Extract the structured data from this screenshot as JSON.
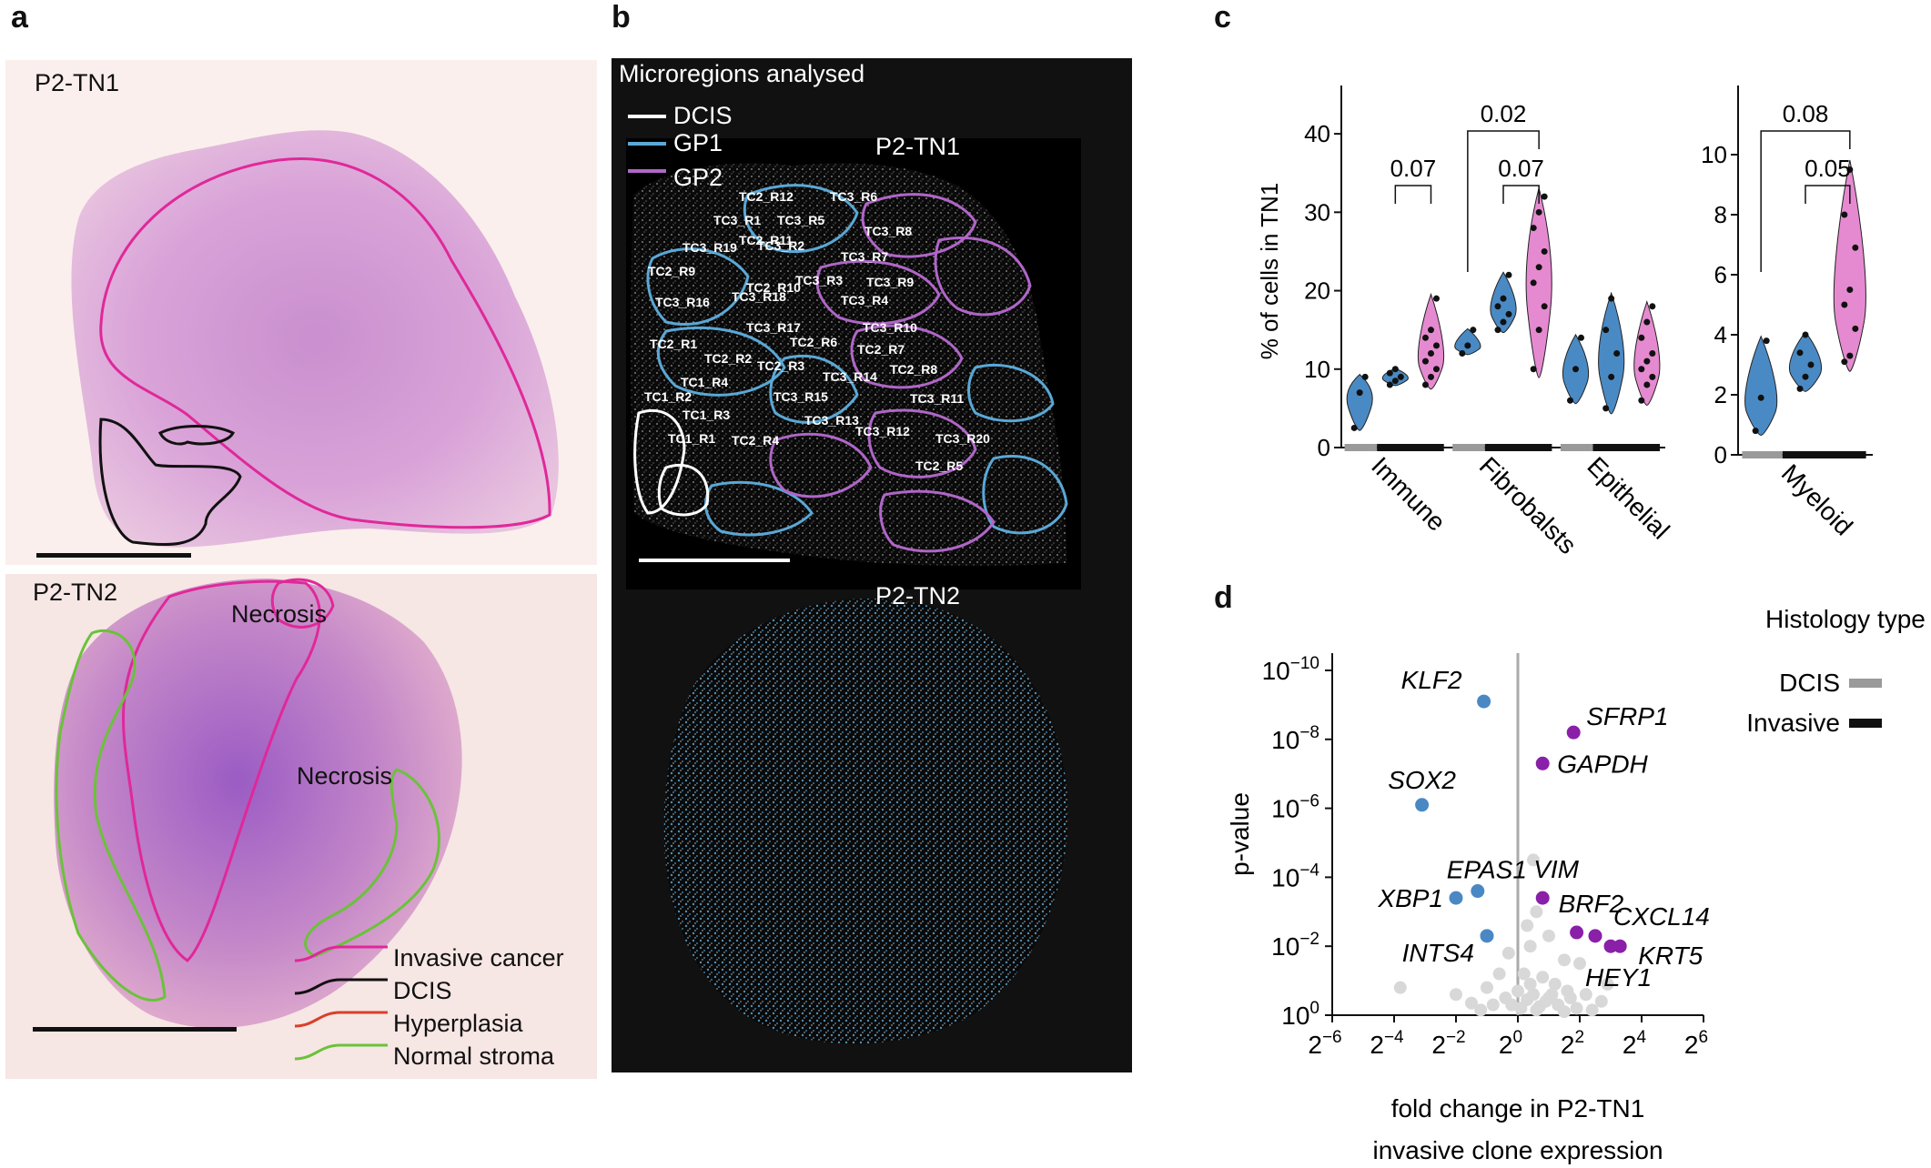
{
  "panels": {
    "a": {
      "letter": "a",
      "top_title": "P2-TN1",
      "bottom_title": "P2-TN2",
      "necrosis_1": "Necrosis",
      "necrosis_2": "Necrosis",
      "legend": [
        {
          "label": "Invasive cancer",
          "color": "#e0289a"
        },
        {
          "label": "DCIS",
          "color": "#111111"
        },
        {
          "label": "Hyperplasia",
          "color": "#d9402a"
        },
        {
          "label": "Normal stroma",
          "color": "#6ac23a"
        }
      ]
    },
    "b": {
      "letter": "b",
      "header": "Microregions analysed",
      "legend": [
        {
          "label": "DCIS",
          "color": "#ffffff"
        },
        {
          "label": "GP1",
          "color": "#5aa8d6"
        },
        {
          "label": "GP2",
          "color": "#b066c8"
        }
      ],
      "top_title": "P2-TN1",
      "bottom_title": "P2-TN2",
      "regions": [
        {
          "label": "TC2_R12",
          "group": "GP2"
        },
        {
          "label": "TC3_R6",
          "group": "GP2"
        },
        {
          "label": "TC3_R1",
          "group": "GP1"
        },
        {
          "label": "TC3_R5",
          "group": "GP2"
        },
        {
          "label": "TC3_R8",
          "group": "GP2"
        },
        {
          "label": "TC2_R11",
          "group": "GP2"
        },
        {
          "label": "TC3_R19",
          "group": "GP1"
        },
        {
          "label": "TC3_R2",
          "group": "GP2"
        },
        {
          "label": "TC3_R7",
          "group": "GP2"
        },
        {
          "label": "TC2_R9",
          "group": "GP1"
        },
        {
          "label": "TC3_R3",
          "group": "GP2"
        },
        {
          "label": "TC3_R9",
          "group": "GP2"
        },
        {
          "label": "TC2_R10",
          "group": "GP2"
        },
        {
          "label": "TC3_R16",
          "group": "GP1"
        },
        {
          "label": "TC3_R18",
          "group": "GP1"
        },
        {
          "label": "TC3_R4",
          "group": "GP2"
        },
        {
          "label": "TC3_R17",
          "group": "GP2"
        },
        {
          "label": "TC3_R10",
          "group": "GP2"
        },
        {
          "label": "TC2_R6",
          "group": "GP2"
        },
        {
          "label": "TC2_R1",
          "group": "GP1"
        },
        {
          "label": "TC2_R7",
          "group": "GP1"
        },
        {
          "label": "TC2_R2",
          "group": "GP1"
        },
        {
          "label": "TC2_R3",
          "group": "GP1"
        },
        {
          "label": "TC2_R8",
          "group": "GP1"
        },
        {
          "label": "TC1_R4",
          "group": "DCIS"
        },
        {
          "label": "TC3_R14",
          "group": "GP2"
        },
        {
          "label": "TC1_R2",
          "group": "DCIS"
        },
        {
          "label": "TC3_R15",
          "group": "GP2"
        },
        {
          "label": "TC3_R11",
          "group": "GP2"
        },
        {
          "label": "TC1_R3",
          "group": "DCIS"
        },
        {
          "label": "TC3_R13",
          "group": "GP2"
        },
        {
          "label": "TC3_R12",
          "group": "GP2"
        },
        {
          "label": "TC3_R20",
          "group": "GP2"
        },
        {
          "label": "TC1_R1",
          "group": "DCIS"
        },
        {
          "label": "TC2_R4",
          "group": "GP1"
        },
        {
          "label": "TC2_R5",
          "group": "GP1"
        }
      ]
    },
    "c": {
      "letter": "c"
    },
    "d": {
      "letter": "d",
      "legend_title": "Histology type",
      "legend": [
        {
          "label": "DCIS",
          "color": "#9a9a9a"
        },
        {
          "label": "Invasive",
          "color": "#111111"
        }
      ]
    }
  },
  "colors": {
    "GP1": "#4a8ac4",
    "GP2": "#e58ad0",
    "up_gene": "#8a1fa8",
    "down_gene": "#4a88c4",
    "ns_gene": "#d8d8d8"
  },
  "chart_data": [
    {
      "type": "violin",
      "panel": "c-left",
      "ylabel": "% of cells in TN1",
      "ylim": [
        0,
        45
      ],
      "yticks": [
        0,
        10,
        20,
        30,
        40
      ],
      "categories": [
        "Immune",
        "Fibrobalsts",
        "Epithelial"
      ],
      "groups": [
        "DCIS",
        "GP1",
        "GP2"
      ],
      "series": [
        {
          "category": "Immune",
          "group": "DCIS",
          "points": [
            2.5,
            7,
            9
          ]
        },
        {
          "category": "Immune",
          "group": "GP1",
          "points": [
            8,
            8.5,
            9,
            9.5,
            10
          ]
        },
        {
          "category": "Immune",
          "group": "GP2",
          "points": [
            8,
            9,
            10,
            11,
            12,
            13,
            14,
            15,
            19
          ]
        },
        {
          "category": "Fibrobalsts",
          "group": "DCIS",
          "points": [
            12,
            13,
            15
          ]
        },
        {
          "category": "Fibrobalsts",
          "group": "GP1",
          "points": [
            15,
            16,
            17,
            18,
            19,
            22
          ]
        },
        {
          "category": "Fibrobalsts",
          "group": "GP2",
          "points": [
            10,
            15,
            18,
            21,
            23,
            25,
            28,
            30,
            32
          ]
        },
        {
          "category": "Epithelial",
          "group": "DCIS",
          "points": [
            6,
            10,
            14
          ]
        },
        {
          "category": "Epithelial",
          "group": "GP1",
          "points": [
            5,
            9,
            12,
            15,
            19
          ]
        },
        {
          "category": "Epithelial",
          "group": "GP2",
          "points": [
            6,
            8,
            9,
            10,
            11,
            12,
            14,
            16,
            18
          ]
        }
      ],
      "brackets": [
        {
          "category": "Immune",
          "from": "GP1",
          "to": "GP2",
          "label": "0.07"
        },
        {
          "category": "Fibrobalsts",
          "from": "DCIS",
          "to": "GP2",
          "label": "0.02"
        },
        {
          "category": "Fibrobalsts",
          "from": "GP1",
          "to": "GP2",
          "label": "0.07"
        }
      ]
    },
    {
      "type": "violin",
      "panel": "c-right",
      "ylim": [
        0,
        12
      ],
      "yticks": [
        0,
        2,
        4,
        6,
        8,
        10
      ],
      "categories": [
        "Myeloid"
      ],
      "groups": [
        "DCIS",
        "GP1",
        "GP2"
      ],
      "series": [
        {
          "category": "Myeloid",
          "group": "DCIS",
          "points": [
            0.8,
            1.9,
            3.8
          ]
        },
        {
          "category": "Myeloid",
          "group": "GP1",
          "points": [
            2.2,
            2.6,
            3,
            3.4,
            4
          ]
        },
        {
          "category": "Myeloid",
          "group": "GP2",
          "points": [
            3.1,
            3.3,
            4.2,
            5,
            5.5,
            6.9,
            8,
            9.5
          ]
        }
      ],
      "brackets": [
        {
          "category": "Myeloid",
          "from": "DCIS",
          "to": "GP2",
          "label": "0.08"
        },
        {
          "category": "Myeloid",
          "from": "GP1",
          "to": "GP2",
          "label": "0.05"
        }
      ]
    },
    {
      "type": "scatter",
      "panel": "d",
      "xlabel_line1": "fold change in P2-TN1",
      "xlabel_line2": "invasive clone expression",
      "ylabel": "p-value",
      "x_scale": "log2",
      "y_scale": "-log10 (reversed)",
      "xlim_log2": [
        -6,
        6
      ],
      "ylim_neglog10": [
        0,
        10.5
      ],
      "xtick_exponents": [
        "−6",
        "−4",
        "−2",
        "0",
        "2",
        "4",
        "6"
      ],
      "ytick_exponents": [
        "−10",
        "−8",
        "−6",
        "−4",
        "−2",
        "0"
      ],
      "labeled_genes": [
        {
          "gene": "KLF2",
          "log2fc": -1.1,
          "neglog10p": 9.1,
          "class": "down"
        },
        {
          "gene": "SFRP1",
          "log2fc": 1.8,
          "neglog10p": 8.2,
          "class": "up"
        },
        {
          "gene": "GAPDH",
          "log2fc": 0.8,
          "neglog10p": 7.3,
          "class": "up"
        },
        {
          "gene": "SOX2",
          "log2fc": -3.1,
          "neglog10p": 6.1,
          "class": "down"
        },
        {
          "gene": "EPAS1",
          "log2fc": -1.3,
          "neglog10p": 3.6,
          "class": "down"
        },
        {
          "gene": "XBP1",
          "log2fc": -2.0,
          "neglog10p": 3.4,
          "class": "down"
        },
        {
          "gene": "VIM",
          "log2fc": 0.8,
          "neglog10p": 3.4,
          "class": "up"
        },
        {
          "gene": "BRF2",
          "log2fc": 1.9,
          "neglog10p": 2.4,
          "class": "up"
        },
        {
          "gene": "CXCL14",
          "log2fc": 2.5,
          "neglog10p": 2.3,
          "class": "up"
        },
        {
          "gene": "KRT5",
          "log2fc": 3.3,
          "neglog10p": 2.0,
          "class": "up"
        },
        {
          "gene": "HEY1",
          "log2fc": 3.0,
          "neglog10p": 2.0,
          "class": "up"
        },
        {
          "gene": "INTS4",
          "log2fc": -1.0,
          "neglog10p": 2.3,
          "class": "down"
        }
      ],
      "background_points": [
        [
          0.5,
          4.5
        ],
        [
          0.6,
          3.0
        ],
        [
          0.3,
          2.6
        ],
        [
          1.0,
          2.3
        ],
        [
          0.4,
          2.0
        ],
        [
          -0.3,
          1.8
        ],
        [
          1.5,
          1.6
        ],
        [
          2.0,
          1.5
        ],
        [
          -0.6,
          1.2
        ],
        [
          0.2,
          1.2
        ],
        [
          0.8,
          1.1
        ],
        [
          1.2,
          0.9
        ],
        [
          -1.0,
          0.8
        ],
        [
          0.0,
          0.7
        ],
        [
          0.5,
          0.6
        ],
        [
          1.7,
          0.5
        ],
        [
          2.2,
          0.6
        ],
        [
          2.7,
          0.4
        ],
        [
          -0.4,
          0.5
        ],
        [
          0.9,
          0.4
        ],
        [
          1.3,
          0.3
        ],
        [
          -0.8,
          0.3
        ],
        [
          0.1,
          0.2
        ],
        [
          0.6,
          0.15
        ],
        [
          1.9,
          0.2
        ],
        [
          -1.5,
          0.35
        ],
        [
          -2.0,
          0.6
        ],
        [
          -3.8,
          0.8
        ],
        [
          2.9,
          0.9
        ],
        [
          0.4,
          0.9
        ],
        [
          1.1,
          0.6
        ],
        [
          -0.2,
          0.3
        ],
        [
          0.7,
          0.25
        ],
        [
          1.5,
          0.1
        ],
        [
          2.4,
          0.15
        ],
        [
          -1.2,
          0.15
        ],
        [
          0.3,
          0.45
        ],
        [
          1.0,
          0.5
        ],
        [
          1.6,
          0.7
        ]
      ]
    }
  ]
}
